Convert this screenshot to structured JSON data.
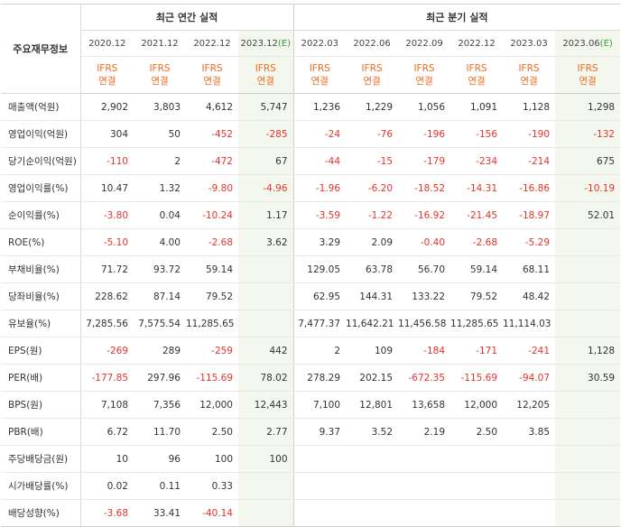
{
  "header": {
    "row_label": "주요재무정보",
    "annual_title": "최근 연간 실적",
    "quarter_title": "최근 분기 실적"
  },
  "columns": [
    {
      "period": "2020.12",
      "estimate": false
    },
    {
      "period": "2021.12",
      "estimate": false
    },
    {
      "period": "2022.12",
      "estimate": false
    },
    {
      "period": "2023.12",
      "estimate": true,
      "estimate_mark": "(E)"
    },
    {
      "period": "2022.03",
      "estimate": false
    },
    {
      "period": "2022.06",
      "estimate": false
    },
    {
      "period": "2022.09",
      "estimate": false
    },
    {
      "period": "2022.12",
      "estimate": false
    },
    {
      "period": "2023.03",
      "estimate": false
    },
    {
      "period": "2023.06",
      "estimate": true,
      "estimate_mark": "(E)"
    }
  ],
  "ifrs_label": "IFRS",
  "consolidated_label": "연결",
  "rows": [
    {
      "label": "매출액(억원)",
      "values": [
        "2,902",
        "3,803",
        "4,612",
        "5,747",
        "1,236",
        "1,229",
        "1,056",
        "1,091",
        "1,128",
        "1,298"
      ]
    },
    {
      "label": "영업이익(억원)",
      "values": [
        "304",
        "50",
        "-452",
        "-285",
        "-24",
        "-76",
        "-196",
        "-156",
        "-190",
        "-132"
      ]
    },
    {
      "label": "당기순이익(억원)",
      "values": [
        "-110",
        "2",
        "-472",
        "67",
        "-44",
        "-15",
        "-179",
        "-234",
        "-214",
        "675"
      ]
    },
    {
      "label": "영업이익률(%)",
      "values": [
        "10.47",
        "1.32",
        "-9.80",
        "-4.96",
        "-1.96",
        "-6.20",
        "-18.52",
        "-14.31",
        "-16.86",
        "-10.19"
      ]
    },
    {
      "label": "순이익률(%)",
      "values": [
        "-3.80",
        "0.04",
        "-10.24",
        "1.17",
        "-3.59",
        "-1.22",
        "-16.92",
        "-21.45",
        "-18.97",
        "52.01"
      ]
    },
    {
      "label": "ROE(%)",
      "values": [
        "-5.10",
        "4.00",
        "-2.68",
        "3.62",
        "3.29",
        "2.09",
        "-0.40",
        "-2.68",
        "-5.29",
        ""
      ]
    },
    {
      "label": "부채비율(%)",
      "values": [
        "71.72",
        "93.72",
        "59.14",
        "",
        "129.05",
        "63.78",
        "56.70",
        "59.14",
        "68.11",
        ""
      ]
    },
    {
      "label": "당좌비율(%)",
      "values": [
        "228.62",
        "87.14",
        "79.52",
        "",
        "62.95",
        "144.31",
        "133.22",
        "79.52",
        "48.42",
        ""
      ]
    },
    {
      "label": "유보율(%)",
      "values": [
        "7,285.56",
        "7,575.54",
        "11,285.65",
        "",
        "7,477.37",
        "11,642.21",
        "11,456.58",
        "11,285.65",
        "11,114.03",
        ""
      ]
    },
    {
      "label": "EPS(원)",
      "values": [
        "-269",
        "289",
        "-259",
        "442",
        "2",
        "109",
        "-184",
        "-171",
        "-241",
        "1,128"
      ]
    },
    {
      "label": "PER(배)",
      "values": [
        "-177.85",
        "297.96",
        "-115.69",
        "78.02",
        "278.29",
        "202.15",
        "-672.35",
        "-115.69",
        "-94.07",
        "30.59"
      ]
    },
    {
      "label": "BPS(원)",
      "values": [
        "7,108",
        "7,356",
        "12,000",
        "12,443",
        "7,100",
        "12,801",
        "13,658",
        "12,000",
        "12,205",
        ""
      ]
    },
    {
      "label": "PBR(배)",
      "values": [
        "6.72",
        "11.70",
        "2.50",
        "2.77",
        "9.37",
        "3.52",
        "2.19",
        "2.50",
        "3.85",
        ""
      ]
    },
    {
      "label": "주당배당금(원)",
      "values": [
        "10",
        "96",
        "100",
        "100",
        "",
        "",
        "",
        "",
        "",
        ""
      ]
    },
    {
      "label": "시가배당률(%)",
      "values": [
        "0.02",
        "0.11",
        "0.33",
        "",
        "",
        "",
        "",
        "",
        "",
        ""
      ]
    },
    {
      "label": "배당성향(%)",
      "values": [
        "-3.68",
        "33.41",
        "-40.14",
        "",
        "",
        "",
        "",
        "",
        "",
        ""
      ]
    }
  ],
  "colors": {
    "negative": "#e2352c",
    "ifrs": "#ee6a1f",
    "estimate_bg": "#f3f7ed",
    "estimate_mark": "#3c9a3c"
  }
}
